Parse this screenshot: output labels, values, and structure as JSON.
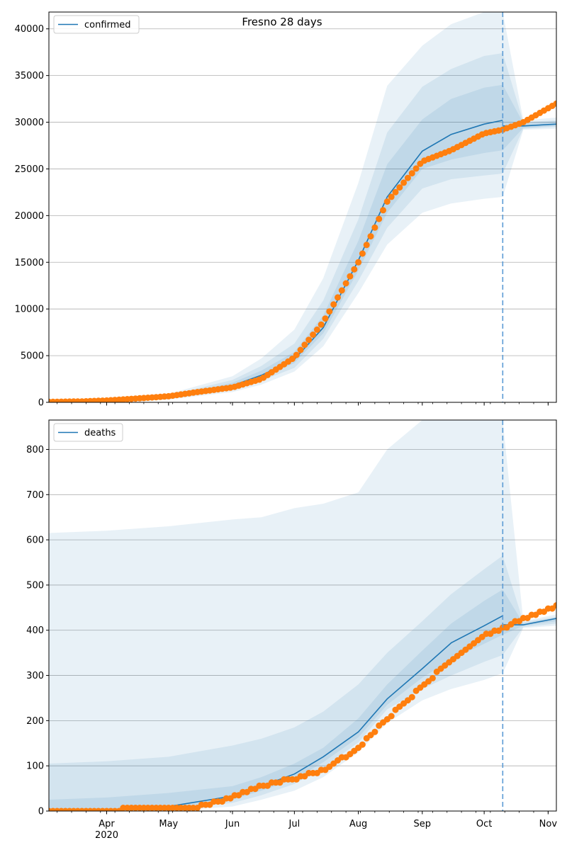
{
  "figure": {
    "title": "Fresno 28 days"
  },
  "colors": {
    "model": "#1f77b4",
    "observed": "#ff7f0e",
    "band": "#1f77b4",
    "grid": "#b0b0b0",
    "forecast_line": "#5b9bd5"
  },
  "chart_data": [
    {
      "type": "line",
      "name": "confirmed-panel",
      "legend": "confirmed",
      "legend_position": "top-left",
      "grid": "horizontal",
      "x_axis": {
        "type": "date",
        "range": [
          "2020-03-04",
          "2020-11-05"
        ],
        "major_ticks": [
          {
            "date": "2020-04-01",
            "label": ""
          },
          {
            "date": "2020-05-01",
            "label": ""
          },
          {
            "date": "2020-06-01",
            "label": ""
          },
          {
            "date": "2020-07-01",
            "label": ""
          },
          {
            "date": "2020-08-01",
            "label": ""
          },
          {
            "date": "2020-09-01",
            "label": ""
          },
          {
            "date": "2020-10-01",
            "label": ""
          },
          {
            "date": "2020-11-01",
            "label": ""
          }
        ]
      },
      "ylim": [
        0,
        41800
      ],
      "y_ticks": [
        {
          "value": 0,
          "label": "0"
        },
        {
          "value": 5000,
          "label": "5000"
        },
        {
          "value": 10000,
          "label": "10000"
        },
        {
          "value": 15000,
          "label": "15000"
        },
        {
          "value": 20000,
          "label": "20000"
        },
        {
          "value": 25000,
          "label": "25000"
        },
        {
          "value": 30000,
          "label": "30000"
        },
        {
          "value": 35000,
          "label": "35000"
        },
        {
          "value": 40000,
          "label": "40000"
        }
      ],
      "forecast_start": "2020-10-10",
      "model": {
        "dates": [
          "2020-03-04",
          "2020-04-01",
          "2020-05-01",
          "2020-06-01",
          "2020-06-15",
          "2020-07-01",
          "2020-07-15",
          "2020-08-01",
          "2020-08-15",
          "2020-09-01",
          "2020-09-15",
          "2020-10-01",
          "2020-10-10",
          "2020-10-20",
          "2020-11-05"
        ],
        "median": [
          60,
          120,
          500,
          1800,
          2900,
          4600,
          8000,
          15200,
          22000,
          26900,
          28700,
          29800,
          30200,
          29600,
          29800
        ],
        "bands": [
          {
            "lower": [
              0,
              60,
              300,
              1100,
              1900,
              3300,
              6000,
              11700,
              16900,
              20300,
              21300,
              21800,
              22000,
              29200,
              29300
            ],
            "upper": [
              200,
              300,
              900,
              2800,
              4700,
              7800,
              13300,
              23500,
              33900,
              38200,
              40500,
              41800,
              41800,
              30200,
              30500
            ]
          },
          {
            "lower": [
              20,
              80,
              380,
              1350,
              2300,
              3700,
              6800,
              13000,
              18700,
              22900,
              23900,
              24300,
              24500,
              29300,
              29500
            ],
            "upper": [
              150,
              230,
              750,
              2400,
              3900,
              6300,
              10900,
              19600,
              28900,
              33800,
              35700,
              37100,
              37400,
              30000,
              30200
            ]
          },
          {
            "lower": [
              40,
              100,
              440,
              1600,
              2600,
              4200,
              7400,
              14100,
              20300,
              25000,
              26000,
              26700,
              27000,
              29400,
              29600
            ],
            "upper": [
              100,
              180,
              620,
              2100,
              3400,
              5400,
              9300,
              17300,
              25500,
              30300,
              32500,
              33700,
              34000,
              29900,
              30100
            ]
          }
        ]
      },
      "observed": {
        "dates": [
          "2020-03-04",
          "2020-03-20",
          "2020-04-01",
          "2020-04-15",
          "2020-05-01",
          "2020-05-15",
          "2020-06-01",
          "2020-06-15",
          "2020-07-01",
          "2020-07-15",
          "2020-08-01",
          "2020-08-15",
          "2020-09-01",
          "2020-09-15",
          "2020-10-01",
          "2020-10-10",
          "2020-10-20",
          "2020-11-05"
        ],
        "values": [
          50,
          100,
          200,
          400,
          650,
          1100,
          1600,
          2500,
          4800,
          8600,
          15000,
          21500,
          25800,
          27000,
          28800,
          29200,
          30000,
          32000
        ]
      }
    },
    {
      "type": "line",
      "name": "deaths-panel",
      "legend": "deaths",
      "legend_position": "top-left",
      "grid": "horizontal",
      "x_axis": {
        "type": "date",
        "range": [
          "2020-03-04",
          "2020-11-05"
        ],
        "major_ticks": [
          {
            "date": "2020-04-01",
            "label": "Apr"
          },
          {
            "date": "2020-05-01",
            "label": "May"
          },
          {
            "date": "2020-06-01",
            "label": "Jun"
          },
          {
            "date": "2020-07-01",
            "label": "Jul"
          },
          {
            "date": "2020-08-01",
            "label": "Aug"
          },
          {
            "date": "2020-09-01",
            "label": "Sep"
          },
          {
            "date": "2020-10-01",
            "label": "Oct"
          },
          {
            "date": "2020-11-01",
            "label": "Nov"
          }
        ],
        "year_label": {
          "date": "2020-04-01",
          "label": "2020"
        }
      },
      "ylim": [
        0,
        865
      ],
      "y_ticks": [
        {
          "value": 0,
          "label": "0"
        },
        {
          "value": 100,
          "label": "100"
        },
        {
          "value": 200,
          "label": "200"
        },
        {
          "value": 300,
          "label": "300"
        },
        {
          "value": 400,
          "label": "400"
        },
        {
          "value": 500,
          "label": "500"
        },
        {
          "value": 600,
          "label": "600"
        },
        {
          "value": 700,
          "label": "700"
        },
        {
          "value": 800,
          "label": "800"
        }
      ],
      "forecast_start": "2020-10-10",
      "model": {
        "dates": [
          "2020-03-04",
          "2020-04-01",
          "2020-05-01",
          "2020-06-01",
          "2020-06-15",
          "2020-07-01",
          "2020-07-15",
          "2020-08-01",
          "2020-08-15",
          "2020-09-01",
          "2020-09-15",
          "2020-10-01",
          "2020-10-10",
          "2020-10-20",
          "2020-11-05"
        ],
        "median": [
          0,
          2,
          10,
          33,
          55,
          82,
          120,
          175,
          248,
          315,
          372,
          410,
          432,
          412,
          426
        ],
        "bands": [
          {
            "lower": [
              0,
              0,
              0,
              10,
              25,
              45,
              75,
              130,
              195,
              245,
              270,
              290,
              305,
              405,
              410
            ],
            "upper": [
              615,
              620,
              630,
              645,
              650,
              670,
              680,
              705,
              800,
              865,
              865,
              865,
              865,
              420,
              435
            ]
          },
          {
            "lower": [
              0,
              0,
              3,
              18,
              35,
              60,
              95,
              152,
              225,
              270,
              300,
              330,
              345,
              407,
              415
            ],
            "upper": [
              105,
              110,
              120,
              145,
              160,
              185,
              220,
              280,
              350,
              420,
              480,
              535,
              565,
              418,
              430
            ]
          },
          {
            "lower": [
              0,
              1,
              6,
              25,
              45,
              70,
              108,
              163,
              235,
              295,
              335,
              370,
              390,
              410,
              420
            ],
            "upper": [
              25,
              30,
              40,
              55,
              75,
              105,
              140,
              205,
              280,
              355,
              415,
              465,
              490,
              415,
              428
            ]
          }
        ]
      },
      "observed": {
        "dates": [
          "2020-03-04",
          "2020-04-01",
          "2020-04-15",
          "2020-05-01",
          "2020-05-15",
          "2020-06-01",
          "2020-06-15",
          "2020-07-01",
          "2020-07-15",
          "2020-08-01",
          "2020-08-15",
          "2020-09-01",
          "2020-09-15",
          "2020-10-01",
          "2020-10-10",
          "2020-10-20",
          "2020-11-05"
        ],
        "values": [
          0,
          2,
          5,
          7,
          10,
          30,
          55,
          72,
          90,
          140,
          205,
          275,
          335,
          390,
          405,
          425,
          455
        ]
      }
    }
  ]
}
